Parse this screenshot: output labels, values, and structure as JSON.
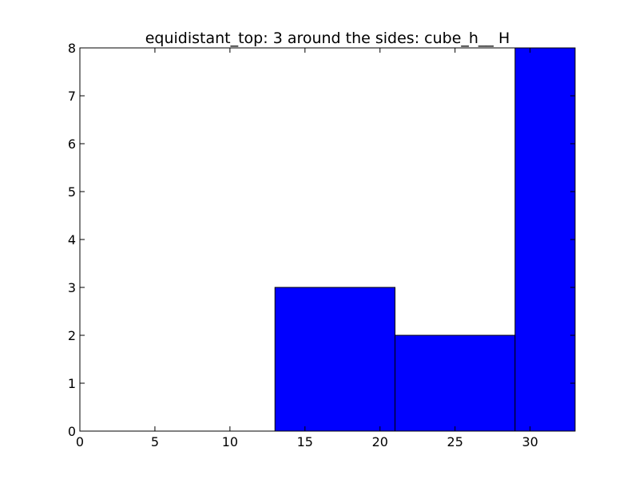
{
  "chart_data": {
    "type": "bar",
    "title": "equidistant_top: 3 around the sides: cube_h__ H",
    "xlabel": "",
    "ylabel": "",
    "xlim": [
      0,
      33
    ],
    "ylim": [
      0,
      8
    ],
    "xticks": [
      0,
      5,
      10,
      15,
      20,
      25,
      30
    ],
    "yticks": [
      0,
      1,
      2,
      3,
      4,
      5,
      6,
      7,
      8
    ],
    "bins": [
      {
        "x_start": 0,
        "x_end": 13,
        "value": 0
      },
      {
        "x_start": 13,
        "x_end": 21,
        "value": 3
      },
      {
        "x_start": 21,
        "x_end": 29,
        "value": 2
      },
      {
        "x_start": 29,
        "x_end": 33,
        "value": 8
      }
    ],
    "bar_color": "#0000ff",
    "edge_color": "#000000",
    "grid": false
  }
}
